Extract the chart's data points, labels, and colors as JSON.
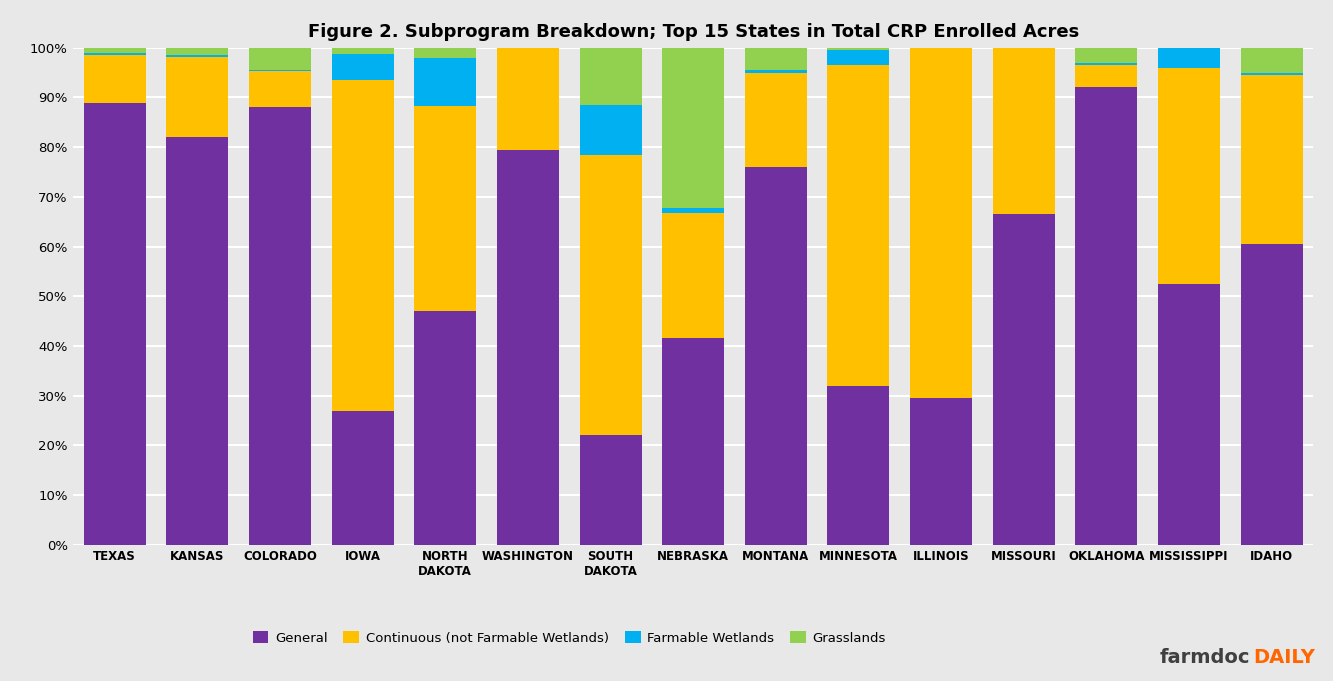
{
  "title": "Figure 2. Subprogram Breakdown; Top 15 States in Total CRP Enrolled Acres",
  "categories": [
    "TEXAS",
    "KANSAS",
    "COLORADO",
    "IOWA",
    "NORTH\nDAKOTA",
    "WASHINGTON",
    "SOUTH\nDAKOTA",
    "NEBRASKA",
    "MONTANA",
    "MINNESOTA",
    "ILLINOIS",
    "MISSOURI",
    "OKLAHOMA",
    "MISSISSIPPI",
    "IDAHO"
  ],
  "general": [
    0.888,
    0.82,
    0.88,
    0.27,
    0.47,
    0.795,
    0.22,
    0.415,
    0.76,
    0.32,
    0.295,
    0.665,
    0.92,
    0.525,
    0.605
  ],
  "continuous": [
    0.097,
    0.162,
    0.073,
    0.665,
    0.413,
    0.205,
    0.565,
    0.252,
    0.19,
    0.645,
    0.705,
    0.335,
    0.045,
    0.435,
    0.34
  ],
  "farmable_wetlands": [
    0.005,
    0.003,
    0.003,
    0.052,
    0.097,
    0.0,
    0.1,
    0.01,
    0.005,
    0.03,
    0.0,
    0.0,
    0.005,
    0.04,
    0.005
  ],
  "grasslands": [
    0.01,
    0.015,
    0.044,
    0.013,
    0.02,
    0.0,
    0.115,
    0.323,
    0.045,
    0.005,
    0.0,
    0.0,
    0.03,
    0.0,
    0.05
  ],
  "colors": {
    "general": "#7030A0",
    "continuous": "#FFC000",
    "farmable_wetlands": "#00B0F0",
    "grasslands": "#92D050"
  },
  "legend_labels": [
    "General",
    "Continuous (not Farmable Wetlands)",
    "Farmable Wetlands",
    "Grasslands"
  ],
  "background_color": "#E8E8E8",
  "ytick_labels": [
    "0%",
    "10%",
    "20%",
    "30%",
    "40%",
    "50%",
    "60%",
    "70%",
    "80%",
    "90%",
    "100%"
  ],
  "ytick_values": [
    0.0,
    0.1,
    0.2,
    0.3,
    0.4,
    0.5,
    0.6,
    0.7,
    0.8,
    0.9,
    1.0
  ],
  "farmdoc_color": "#404040",
  "daily_color": "#FF6600"
}
